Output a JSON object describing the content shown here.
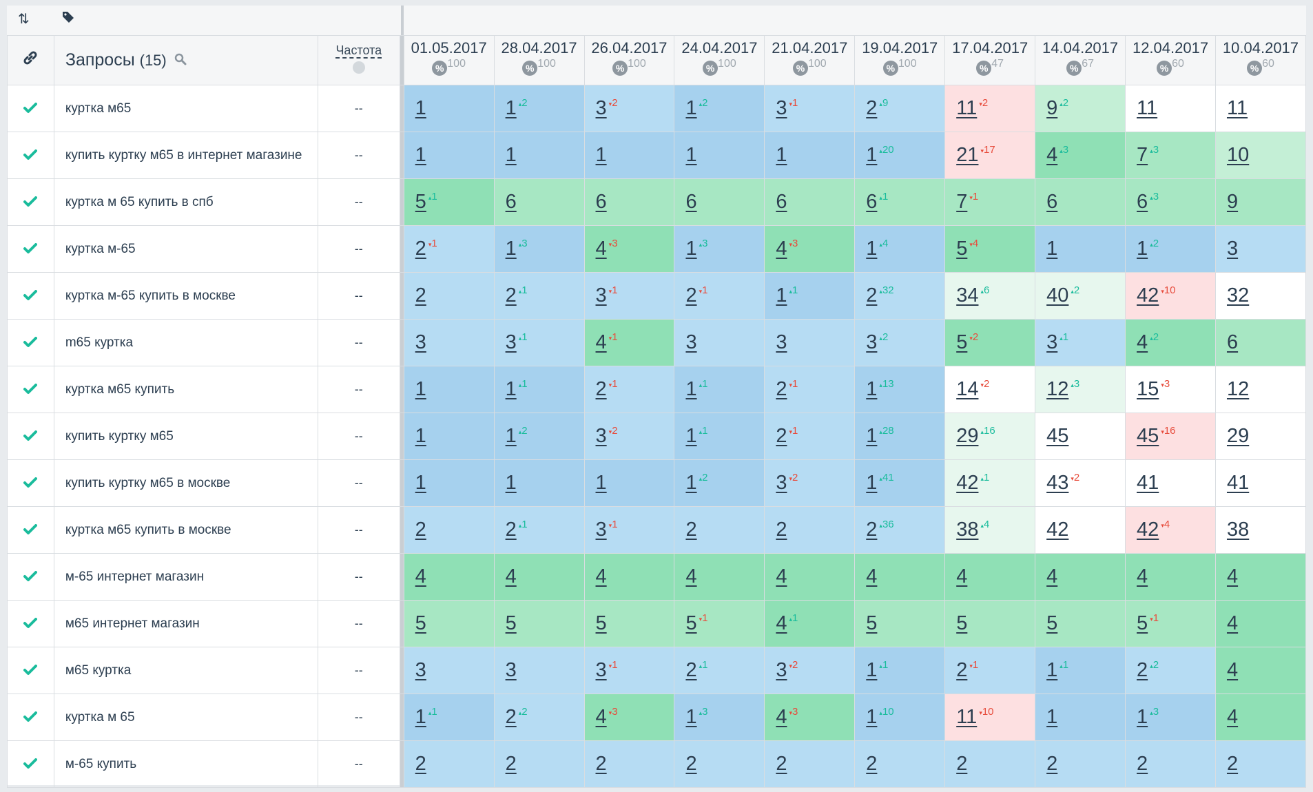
{
  "toolbar": {
    "sort_icon": "sort-arrows-icon",
    "tag_icon": "tag-icon"
  },
  "header": {
    "query_title": "Запросы",
    "query_count": "(15)",
    "freq_label": "Частота",
    "dates": [
      {
        "date": "01.05.2017",
        "pct": "100"
      },
      {
        "date": "28.04.2017",
        "pct": "100"
      },
      {
        "date": "26.04.2017",
        "pct": "100"
      },
      {
        "date": "24.04.2017",
        "pct": "100"
      },
      {
        "date": "21.04.2017",
        "pct": "100"
      },
      {
        "date": "19.04.2017",
        "pct": "100"
      },
      {
        "date": "17.04.2017",
        "pct": "47"
      },
      {
        "date": "14.04.2017",
        "pct": "67"
      },
      {
        "date": "12.04.2017",
        "pct": "60"
      },
      {
        "date": "10.04.2017",
        "pct": "60"
      }
    ]
  },
  "colors": {
    "top1": "#a6d1ee",
    "top3": "#b6dcf3",
    "top5g": "#8fe0b5",
    "top5": "#a7e7c3",
    "top10": "#c4efd6",
    "top30": "#e7f7ee",
    "red": "#fde0e1",
    "white": "#ffffff",
    "check": "#1abc9c",
    "down": "#e74c3c"
  },
  "rows": [
    {
      "q": "куртка м65",
      "f": "--",
      "c": [
        [
          "1",
          "",
          ""
        ],
        [
          "1",
          "2",
          "up"
        ],
        [
          "3",
          "2",
          "dn"
        ],
        [
          "1",
          "2",
          "up"
        ],
        [
          "3",
          "1",
          "dn"
        ],
        [
          "2",
          "9",
          "up"
        ],
        [
          "11",
          "2",
          "dn"
        ],
        [
          "9",
          "2",
          "up"
        ],
        [
          "11",
          "",
          ""
        ],
        [
          "11",
          "",
          ""
        ]
      ],
      "bg": [
        "top1",
        "top1",
        "top3",
        "top1",
        "top3",
        "top3",
        "red",
        "top10",
        "white",
        "white"
      ]
    },
    {
      "q": "купить куртку м65 в интернет магазине",
      "f": "--",
      "c": [
        [
          "1",
          "",
          ""
        ],
        [
          "1",
          "",
          ""
        ],
        [
          "1",
          "",
          ""
        ],
        [
          "1",
          "",
          ""
        ],
        [
          "1",
          "",
          ""
        ],
        [
          "1",
          "20",
          "up"
        ],
        [
          "21",
          "17",
          "dn"
        ],
        [
          "4",
          "3",
          "up"
        ],
        [
          "7",
          "3",
          "up"
        ],
        [
          "10",
          "",
          ""
        ]
      ],
      "bg": [
        "top1",
        "top1",
        "top1",
        "top1",
        "top1",
        "top1",
        "red",
        "top5g",
        "top5",
        "top10"
      ]
    },
    {
      "q": "куртка м 65 купить в спб",
      "f": "--",
      "c": [
        [
          "5",
          "1",
          "up"
        ],
        [
          "6",
          "",
          ""
        ],
        [
          "6",
          "",
          ""
        ],
        [
          "6",
          "",
          ""
        ],
        [
          "6",
          "",
          ""
        ],
        [
          "6",
          "1",
          "up"
        ],
        [
          "7",
          "1",
          "dn"
        ],
        [
          "6",
          "",
          ""
        ],
        [
          "6",
          "3",
          "up"
        ],
        [
          "9",
          "",
          ""
        ]
      ],
      "bg": [
        "top5g",
        "top5",
        "top5",
        "top5",
        "top5",
        "top5",
        "top5",
        "top5",
        "top5",
        "top5"
      ]
    },
    {
      "q": "куртка м-65",
      "f": "--",
      "c": [
        [
          "2",
          "1",
          "dn"
        ],
        [
          "1",
          "3",
          "up"
        ],
        [
          "4",
          "3",
          "dn"
        ],
        [
          "1",
          "3",
          "up"
        ],
        [
          "4",
          "3",
          "dn"
        ],
        [
          "1",
          "4",
          "up"
        ],
        [
          "5",
          "4",
          "dn"
        ],
        [
          "1",
          "",
          ""
        ],
        [
          "1",
          "2",
          "up"
        ],
        [
          "3",
          "",
          ""
        ]
      ],
      "bg": [
        "top3",
        "top1",
        "top5g",
        "top1",
        "top5g",
        "top1",
        "top5g",
        "top1",
        "top1",
        "top3"
      ]
    },
    {
      "q": "куртка м-65 купить в москве",
      "f": "--",
      "c": [
        [
          "2",
          "",
          ""
        ],
        [
          "2",
          "1",
          "up"
        ],
        [
          "3",
          "1",
          "dn"
        ],
        [
          "2",
          "1",
          "dn"
        ],
        [
          "1",
          "1",
          "up"
        ],
        [
          "2",
          "32",
          "up"
        ],
        [
          "34",
          "6",
          "up"
        ],
        [
          "40",
          "2",
          "up"
        ],
        [
          "42",
          "10",
          "dn"
        ],
        [
          "32",
          "",
          ""
        ]
      ],
      "bg": [
        "top3",
        "top3",
        "top3",
        "top3",
        "top1",
        "top3",
        "top30",
        "top30",
        "red",
        "white"
      ]
    },
    {
      "q": "m65 куртка",
      "f": "--",
      "c": [
        [
          "3",
          "",
          ""
        ],
        [
          "3",
          "1",
          "up"
        ],
        [
          "4",
          "1",
          "dn"
        ],
        [
          "3",
          "",
          ""
        ],
        [
          "3",
          "",
          ""
        ],
        [
          "3",
          "2",
          "up"
        ],
        [
          "5",
          "2",
          "dn"
        ],
        [
          "3",
          "1",
          "up"
        ],
        [
          "4",
          "2",
          "up"
        ],
        [
          "6",
          "",
          ""
        ]
      ],
      "bg": [
        "top3",
        "top3",
        "top5g",
        "top3",
        "top3",
        "top3",
        "top5g",
        "top3",
        "top5g",
        "top5"
      ]
    },
    {
      "q": "куртка м65 купить",
      "f": "--",
      "c": [
        [
          "1",
          "",
          ""
        ],
        [
          "1",
          "1",
          "up"
        ],
        [
          "2",
          "1",
          "dn"
        ],
        [
          "1",
          "1",
          "up"
        ],
        [
          "2",
          "1",
          "dn"
        ],
        [
          "1",
          "13",
          "up"
        ],
        [
          "14",
          "2",
          "dn"
        ],
        [
          "12",
          "3",
          "up"
        ],
        [
          "15",
          "3",
          "dn"
        ],
        [
          "12",
          "",
          ""
        ]
      ],
      "bg": [
        "top1",
        "top1",
        "top3",
        "top1",
        "top3",
        "top1",
        "white",
        "top30",
        "white",
        "white"
      ]
    },
    {
      "q": "купить куртку м65",
      "f": "--",
      "c": [
        [
          "1",
          "",
          ""
        ],
        [
          "1",
          "2",
          "up"
        ],
        [
          "3",
          "2",
          "dn"
        ],
        [
          "1",
          "1",
          "up"
        ],
        [
          "2",
          "1",
          "dn"
        ],
        [
          "1",
          "28",
          "up"
        ],
        [
          "29",
          "16",
          "up"
        ],
        [
          "45",
          "",
          ""
        ],
        [
          "45",
          "16",
          "dn"
        ],
        [
          "29",
          "",
          ""
        ]
      ],
      "bg": [
        "top1",
        "top1",
        "top3",
        "top1",
        "top3",
        "top1",
        "top30",
        "white",
        "red",
        "white"
      ]
    },
    {
      "q": "купить куртку м65 в москве",
      "f": "--",
      "c": [
        [
          "1",
          "",
          ""
        ],
        [
          "1",
          "",
          ""
        ],
        [
          "1",
          "",
          ""
        ],
        [
          "1",
          "2",
          "up"
        ],
        [
          "3",
          "2",
          "dn"
        ],
        [
          "1",
          "41",
          "up"
        ],
        [
          "42",
          "1",
          "up"
        ],
        [
          "43",
          "2",
          "dn"
        ],
        [
          "41",
          "",
          ""
        ],
        [
          "41",
          "",
          ""
        ]
      ],
      "bg": [
        "top1",
        "top1",
        "top1",
        "top1",
        "top3",
        "top1",
        "top30",
        "white",
        "white",
        "white"
      ]
    },
    {
      "q": "куртка м65 купить в москве",
      "f": "--",
      "c": [
        [
          "2",
          "",
          ""
        ],
        [
          "2",
          "1",
          "up"
        ],
        [
          "3",
          "1",
          "dn"
        ],
        [
          "2",
          "",
          ""
        ],
        [
          "2",
          "",
          ""
        ],
        [
          "2",
          "36",
          "up"
        ],
        [
          "38",
          "4",
          "up"
        ],
        [
          "42",
          "",
          ""
        ],
        [
          "42",
          "4",
          "dn"
        ],
        [
          "38",
          "",
          ""
        ]
      ],
      "bg": [
        "top3",
        "top3",
        "top3",
        "top3",
        "top3",
        "top3",
        "top30",
        "white",
        "red",
        "white"
      ]
    },
    {
      "q": "м-65 интернет магазин",
      "f": "--",
      "c": [
        [
          "4",
          "",
          ""
        ],
        [
          "4",
          "",
          ""
        ],
        [
          "4",
          "",
          ""
        ],
        [
          "4",
          "",
          ""
        ],
        [
          "4",
          "",
          ""
        ],
        [
          "4",
          "",
          ""
        ],
        [
          "4",
          "",
          ""
        ],
        [
          "4",
          "",
          ""
        ],
        [
          "4",
          "",
          ""
        ],
        [
          "4",
          "",
          ""
        ]
      ],
      "bg": [
        "top5g",
        "top5g",
        "top5g",
        "top5g",
        "top5g",
        "top5g",
        "top5g",
        "top5g",
        "top5g",
        "top5g"
      ]
    },
    {
      "q": "м65 интернет магазин",
      "f": "--",
      "c": [
        [
          "5",
          "",
          ""
        ],
        [
          "5",
          "",
          ""
        ],
        [
          "5",
          "",
          ""
        ],
        [
          "5",
          "1",
          "dn"
        ],
        [
          "4",
          "1",
          "up"
        ],
        [
          "5",
          "",
          ""
        ],
        [
          "5",
          "",
          ""
        ],
        [
          "5",
          "",
          ""
        ],
        [
          "5",
          "1",
          "dn"
        ],
        [
          "4",
          "",
          ""
        ]
      ],
      "bg": [
        "top5",
        "top5",
        "top5",
        "top5",
        "top5g",
        "top5",
        "top5",
        "top5",
        "top5",
        "top5g"
      ]
    },
    {
      "q": "м65 куртка",
      "f": "--",
      "c": [
        [
          "3",
          "",
          ""
        ],
        [
          "3",
          "",
          ""
        ],
        [
          "3",
          "1",
          "dn"
        ],
        [
          "2",
          "1",
          "up"
        ],
        [
          "3",
          "2",
          "dn"
        ],
        [
          "1",
          "1",
          "up"
        ],
        [
          "2",
          "1",
          "dn"
        ],
        [
          "1",
          "1",
          "up"
        ],
        [
          "2",
          "2",
          "up"
        ],
        [
          "4",
          "",
          ""
        ]
      ],
      "bg": [
        "top3",
        "top3",
        "top3",
        "top3",
        "top3",
        "top1",
        "top3",
        "top1",
        "top3",
        "top5g"
      ]
    },
    {
      "q": "куртка м 65",
      "f": "--",
      "c": [
        [
          "1",
          "1",
          "up"
        ],
        [
          "2",
          "2",
          "up"
        ],
        [
          "4",
          "3",
          "dn"
        ],
        [
          "1",
          "3",
          "up"
        ],
        [
          "4",
          "3",
          "dn"
        ],
        [
          "1",
          "10",
          "up"
        ],
        [
          "11",
          "10",
          "dn"
        ],
        [
          "1",
          "",
          ""
        ],
        [
          "1",
          "3",
          "up"
        ],
        [
          "4",
          "",
          ""
        ]
      ],
      "bg": [
        "top1",
        "top3",
        "top5g",
        "top1",
        "top5g",
        "top1",
        "red",
        "top1",
        "top1",
        "top5g"
      ]
    },
    {
      "q": "м-65 купить",
      "f": "--",
      "c": [
        [
          "2",
          "",
          ""
        ],
        [
          "2",
          "",
          ""
        ],
        [
          "2",
          "",
          ""
        ],
        [
          "2",
          "",
          ""
        ],
        [
          "2",
          "",
          ""
        ],
        [
          "2",
          "",
          ""
        ],
        [
          "2",
          "",
          ""
        ],
        [
          "2",
          "",
          ""
        ],
        [
          "2",
          "",
          ""
        ],
        [
          "2",
          "",
          ""
        ]
      ],
      "bg": [
        "top3",
        "top3",
        "top3",
        "top3",
        "top3",
        "top3",
        "top3",
        "top3",
        "top3",
        "top3"
      ]
    }
  ]
}
